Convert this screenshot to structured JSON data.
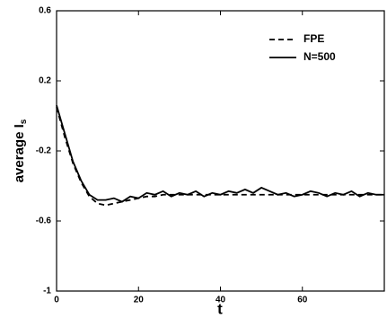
{
  "chart_data": {
    "type": "line",
    "xlabel": "t",
    "ylabel": "average I",
    "ylabel_sub": "s",
    "x": [
      0,
      2,
      4,
      6,
      8,
      10,
      12,
      14,
      16,
      18,
      20,
      22,
      24,
      26,
      28,
      30,
      32,
      34,
      36,
      38,
      40,
      42,
      44,
      46,
      48,
      50,
      52,
      54,
      56,
      58,
      60,
      62,
      64,
      66,
      68,
      70,
      72,
      74,
      76,
      78,
      80
    ],
    "series": [
      {
        "name": "FPE",
        "color": "#000000",
        "dash": true,
        "values": [
          0.05,
          -0.12,
          -0.27,
          -0.38,
          -0.46,
          -0.5,
          -0.51,
          -0.5,
          -0.49,
          -0.48,
          -0.47,
          -0.46,
          -0.46,
          -0.45,
          -0.45,
          -0.45,
          -0.45,
          -0.45,
          -0.45,
          -0.45,
          -0.45,
          -0.45,
          -0.45,
          -0.45,
          -0.45,
          -0.45,
          -0.45,
          -0.45,
          -0.45,
          -0.45,
          -0.45,
          -0.45,
          -0.45,
          -0.45,
          -0.45,
          -0.45,
          -0.45,
          -0.45,
          -0.45,
          -0.45,
          -0.45
        ]
      },
      {
        "name": "N=500",
        "color": "#000000",
        "dash": false,
        "values": [
          0.06,
          -0.1,
          -0.26,
          -0.37,
          -0.45,
          -0.48,
          -0.48,
          -0.47,
          -0.49,
          -0.46,
          -0.47,
          -0.44,
          -0.45,
          -0.43,
          -0.46,
          -0.44,
          -0.45,
          -0.43,
          -0.46,
          -0.44,
          -0.45,
          -0.43,
          -0.44,
          -0.42,
          -0.44,
          -0.41,
          -0.43,
          -0.45,
          -0.44,
          -0.46,
          -0.45,
          -0.43,
          -0.44,
          -0.46,
          -0.44,
          -0.45,
          -0.43,
          -0.46,
          -0.44,
          -0.45,
          -0.45
        ]
      }
    ],
    "xlim": [
      0,
      80
    ],
    "xticks": [
      0,
      20,
      40,
      60
    ],
    "ylim": [
      -1,
      0.6
    ],
    "yticks": [
      0.6,
      0.2,
      -0.2,
      -0.6,
      -1
    ],
    "legend": "upper-right",
    "grid": false
  }
}
